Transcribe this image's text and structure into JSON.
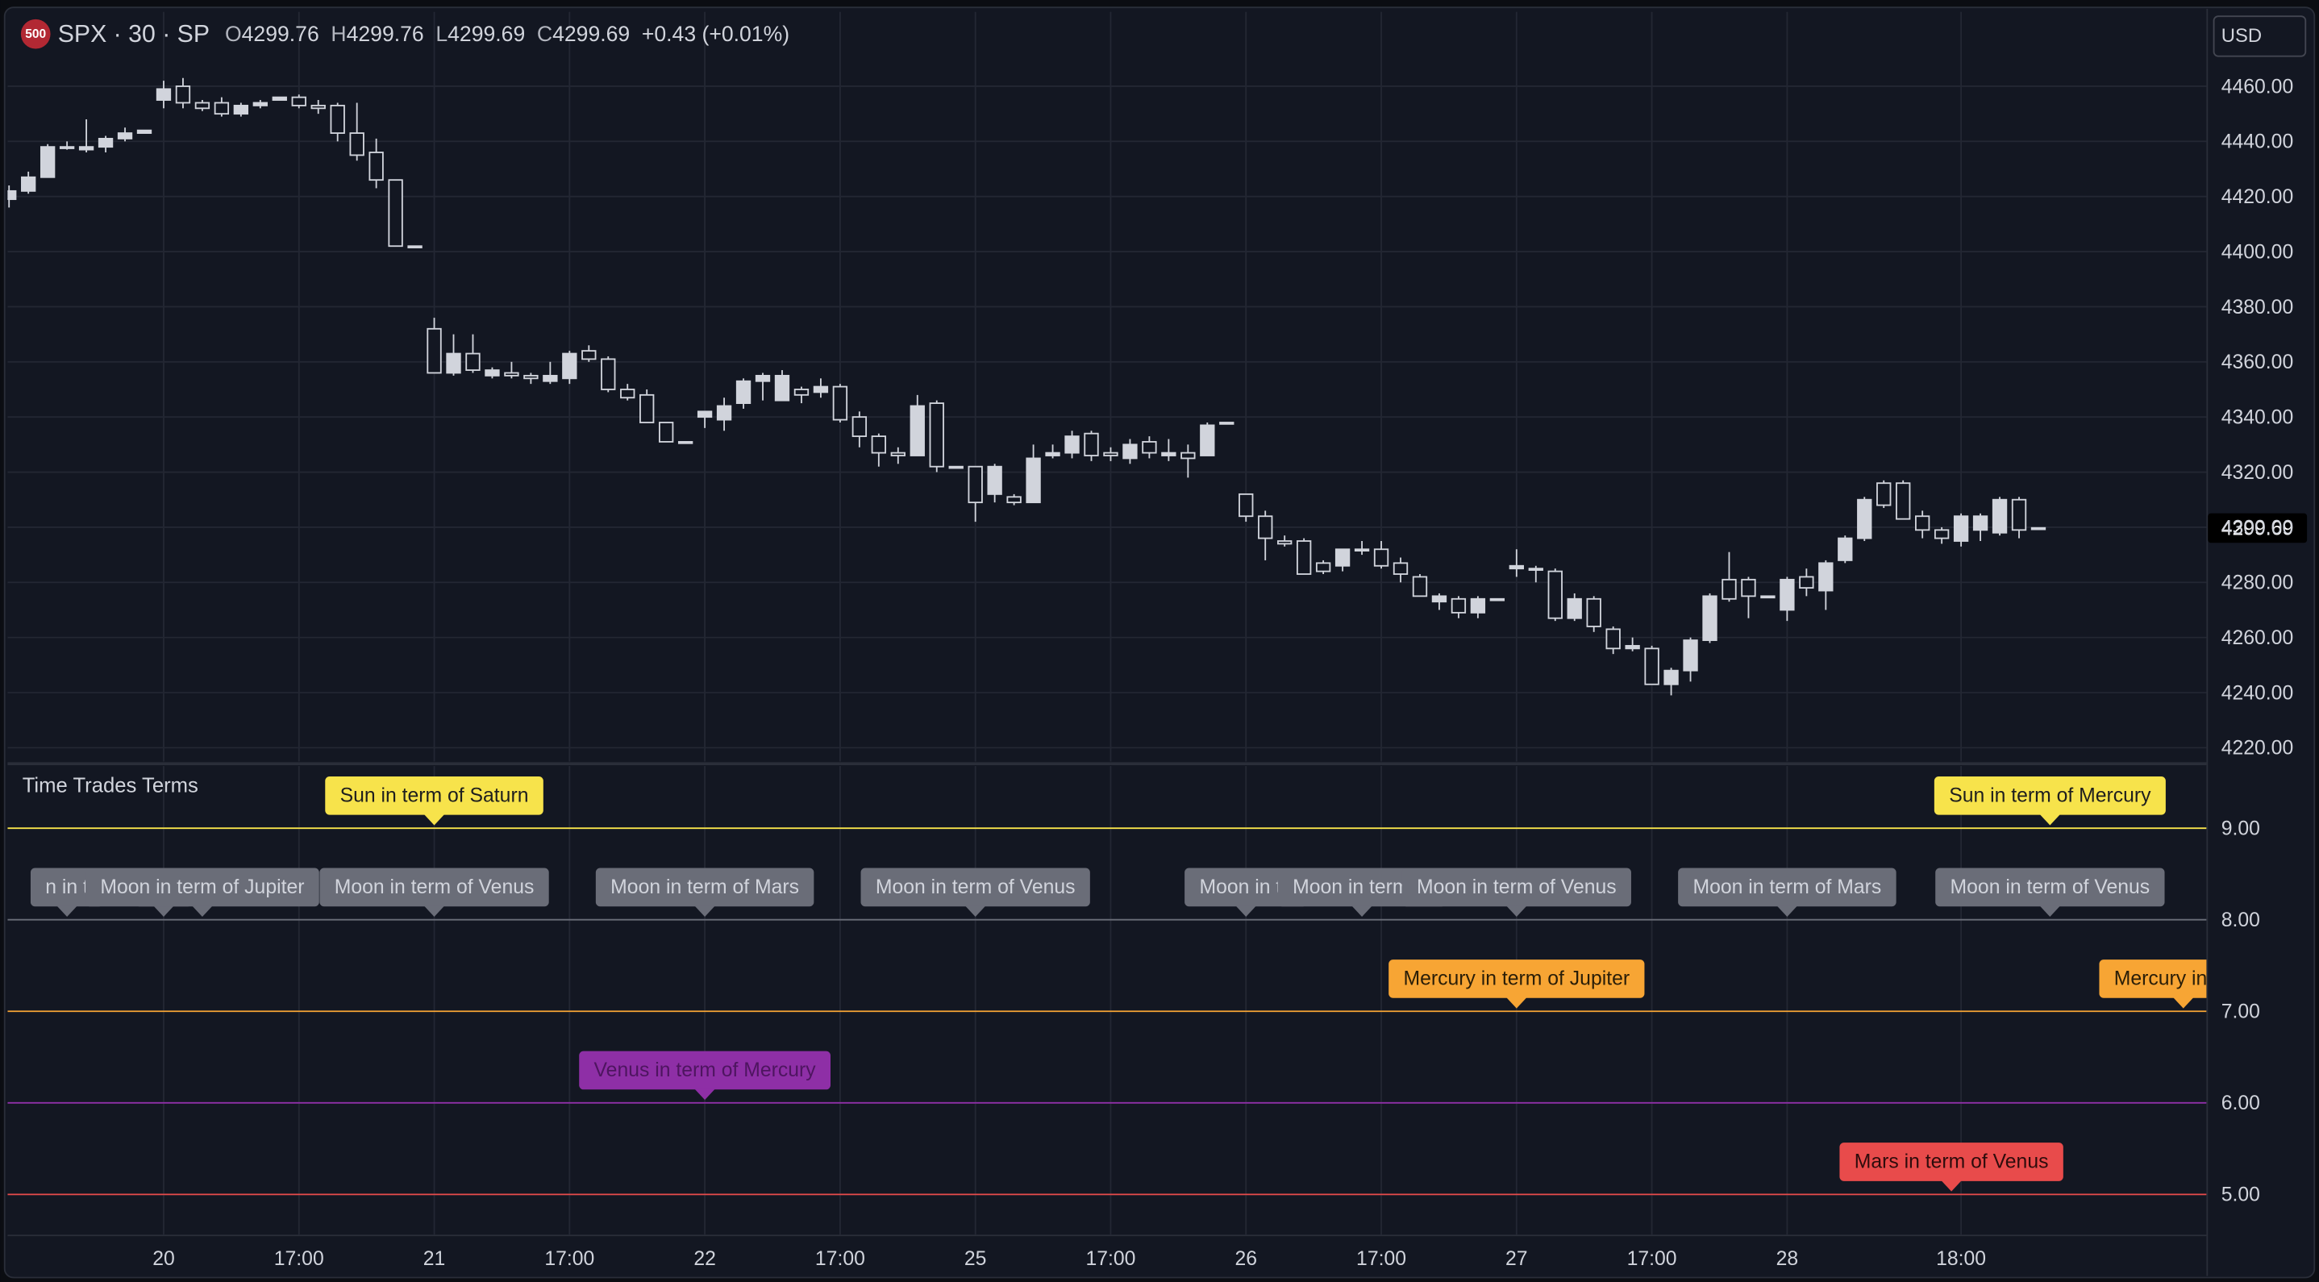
{
  "chart_data": [
    {
      "type": "candlestick",
      "logo": "500",
      "symbol": "SPX · 30 · SP",
      "legend": [
        {
          "label": "O",
          "value": 4299.76
        },
        {
          "label": "H",
          "value": 4299.76
        },
        {
          "label": "L",
          "value": 4299.69
        },
        {
          "label": "C",
          "value": 4299.69
        }
      ],
      "change": "+0.43 (+0.01%)",
      "currency": "USD",
      "up_color": "#d1d4dc",
      "down_color": "#d1d4dc",
      "categories": [
        null,
        null,
        null,
        null,
        null,
        null,
        null,
        null,
        "20",
        null,
        null,
        null,
        null,
        null,
        null,
        "17:00",
        null,
        null,
        null,
        null,
        null,
        null,
        "21",
        null,
        null,
        null,
        null,
        null,
        null,
        "17:00",
        null,
        null,
        null,
        null,
        null,
        null,
        "22",
        null,
        null,
        null,
        null,
        null,
        null,
        "17:00",
        null,
        null,
        null,
        null,
        null,
        null,
        "25",
        null,
        null,
        null,
        null,
        null,
        null,
        "17:00",
        null,
        null,
        null,
        null,
        null,
        null,
        "26",
        null,
        null,
        null,
        null,
        null,
        null,
        "17:00",
        null,
        null,
        null,
        null,
        null,
        null,
        "27",
        null,
        null,
        null,
        null,
        null,
        null,
        "17:00",
        null,
        null,
        null,
        null,
        null,
        null,
        "28",
        null,
        null,
        null,
        null,
        null,
        null,
        null,
        null,
        "18:00",
        null,
        null,
        null,
        null
      ],
      "open": [
        4419,
        4422,
        4427,
        4438,
        4437,
        4438,
        4441,
        4443,
        4455,
        4460,
        4454,
        4454,
        4450,
        4453,
        4455,
        4456,
        4453,
        4453,
        4443,
        4436,
        4426,
        4402,
        4372,
        4356,
        4363,
        4355,
        4356,
        4355,
        4353,
        4354,
        4364,
        4361,
        4350,
        4348,
        4338,
        4331,
        4340,
        4339,
        4345,
        4353,
        4346,
        4350,
        4349,
        4351,
        4340,
        4333,
        4327,
        4326,
        4345,
        4322,
        4322,
        4312,
        4311,
        4309,
        4326,
        4327,
        4334,
        4327,
        4325,
        4331,
        4326,
        4327,
        4326,
        4338,
        4312,
        4304,
        4295,
        4295,
        4287,
        4286,
        4292,
        4292,
        4287,
        4282,
        4273,
        4274,
        4269,
        4274,
        4285,
        4285,
        4284,
        4267,
        4274,
        4263,
        4256,
        4256,
        4243,
        4248,
        4259,
        4281,
        4281,
        4275,
        4270,
        4282,
        4277,
        4288,
        4296,
        4316,
        4316,
        4304,
        4299,
        4295,
        4299,
        4298,
        4310,
        4299.76
      ],
      "high": [
        4424,
        4429,
        4439,
        4440,
        4448,
        4442,
        4445,
        4444,
        4462,
        4463,
        4455,
        4456,
        4454,
        4455,
        4456,
        4457,
        4455,
        4454,
        4454,
        4441,
        4426,
        4402,
        4376,
        4370,
        4370,
        4358,
        4360,
        4356,
        4360,
        4364,
        4366,
        4362,
        4352,
        4350,
        4338,
        4331,
        4342,
        4347,
        4354,
        4356,
        4357,
        4351,
        4354,
        4352,
        4342,
        4334,
        4329,
        4348,
        4346,
        4322,
        4322,
        4323,
        4312,
        4330,
        4330,
        4335,
        4335,
        4329,
        4332,
        4333,
        4332,
        4330,
        4338,
        4338,
        4312,
        4306,
        4297,
        4296,
        4288,
        4292,
        4295,
        4295,
        4289,
        4283,
        4276,
        4275,
        4275,
        4274,
        4292,
        4286,
        4285,
        4276,
        4275,
        4264,
        4260,
        4257,
        4249,
        4260,
        4276,
        4291,
        4282,
        4275,
        4282,
        4285,
        4288,
        4297,
        4311,
        4317,
        4317,
        4306,
        4300,
        4305,
        4305,
        4311,
        4311,
        4299.76
      ],
      "low": [
        4416,
        4421,
        4427,
        4437,
        4436,
        4436,
        4440,
        4443,
        4452,
        4452,
        4451,
        4449,
        4449,
        4452,
        4455,
        4452,
        4450,
        4440,
        4433,
        4423,
        4402,
        4402,
        4356,
        4355,
        4356,
        4354,
        4354,
        4352,
        4352,
        4352,
        4360,
        4349,
        4346,
        4338,
        4331,
        4331,
        4336,
        4335,
        4343,
        4346,
        4346,
        4345,
        4347,
        4338,
        4329,
        4322,
        4323,
        4326,
        4320,
        4322,
        4302,
        4309,
        4308,
        4309,
        4325,
        4325,
        4324,
        4324,
        4323,
        4325,
        4324,
        4318,
        4326,
        4338,
        4302,
        4288,
        4293,
        4283,
        4283,
        4284,
        4290,
        4285,
        4280,
        4275,
        4270,
        4267,
        4267,
        4274,
        4282,
        4280,
        4266,
        4266,
        4262,
        4254,
        4255,
        4243,
        4239,
        4244,
        4258,
        4273,
        4267,
        4275,
        4266,
        4275,
        4270,
        4287,
        4295,
        4307,
        4303,
        4296,
        4294,
        4293,
        4295,
        4297,
        4296,
        4299.69
      ],
      "close": [
        4422,
        4427,
        4438,
        4438,
        4438,
        4441,
        4443,
        4444,
        4459,
        4454,
        4452,
        4450,
        4453,
        4454,
        4456,
        4453,
        4452,
        4443,
        4435,
        4426,
        4402,
        4402,
        4356,
        4363,
        4357,
        4357,
        4355,
        4354,
        4355,
        4363,
        4361,
        4350,
        4347,
        4338,
        4331,
        4331,
        4342,
        4344,
        4353,
        4355,
        4355,
        4348,
        4351,
        4339,
        4333,
        4327,
        4326,
        4344,
        4322,
        4322,
        4309,
        4322,
        4309,
        4325,
        4327,
        4333,
        4326,
        4326,
        4330,
        4327,
        4327,
        4325,
        4337,
        4338,
        4304,
        4296,
        4294,
        4283,
        4284,
        4292,
        4292,
        4286,
        4283,
        4275,
        4275,
        4269,
        4274,
        4274,
        4286,
        4285,
        4267,
        4274,
        4264,
        4256,
        4257,
        4243,
        4248,
        4259,
        4275,
        4274,
        4275,
        4275,
        4281,
        4278,
        4287,
        4296,
        4310,
        4308,
        4303,
        4299,
        4296,
        4304,
        4304,
        4310,
        4299,
        4299.69
      ],
      "ylim": [
        4215,
        4487
      ],
      "yticks": [
        {
          "value": 4220,
          "label": "4220.00"
        },
        {
          "value": 4240,
          "label": "4240.00"
        },
        {
          "value": 4260,
          "label": "4260.00"
        },
        {
          "value": 4280,
          "label": "4280.00"
        },
        {
          "value": 4300,
          "label": "4300.00"
        },
        {
          "value": 4320,
          "label": "4320.00"
        },
        {
          "value": 4340,
          "label": "4340.00"
        },
        {
          "value": 4360,
          "label": "4360.00"
        },
        {
          "value": 4380,
          "label": "4380.00"
        },
        {
          "value": 4400,
          "label": "4400.00"
        },
        {
          "value": 4420,
          "label": "4420.00"
        },
        {
          "value": 4440,
          "label": "4440.00"
        },
        {
          "value": 4460,
          "label": "4460.00"
        }
      ],
      "grid": true
    },
    {
      "type": "event-lines",
      "title": "Time Trades Terms",
      "ylim": [
        4.56,
        9.68
      ],
      "yticks": [
        {
          "value": 5,
          "label": "5.00"
        },
        {
          "value": 6,
          "label": "6.00"
        },
        {
          "value": 7,
          "label": "7.00"
        },
        {
          "value": 8,
          "label": "8.00"
        },
        {
          "value": 9,
          "label": "9.00"
        }
      ],
      "lines": [
        {
          "value": 9,
          "color": "#f7e34b",
          "text_color": "#1e1e1e"
        },
        {
          "value": 8,
          "color": "#6a6d78",
          "text_color": "#d1d4dc"
        },
        {
          "value": 7,
          "color": "#f7a534",
          "text_color": "#2a1e08"
        },
        {
          "value": 6,
          "color": "#8e2fa6",
          "text_color": "#4e1560"
        },
        {
          "value": 5,
          "color": "#e84b4b",
          "text_color": "#2e0c0c"
        }
      ],
      "events": [
        {
          "label": "Sun in term of Saturn",
          "x": 22,
          "line": 0
        },
        {
          "label": "Sun in term of Mercury",
          "x": 105.6,
          "line": 0
        },
        {
          "label": "n in t",
          "x": 3,
          "line": 1
        },
        {
          "label": "Mo",
          "x": 8,
          "line": 1
        },
        {
          "label": "Moon in term of Jupiter",
          "x": 10,
          "line": 1
        },
        {
          "label": "Moon in term of Venus",
          "x": 22,
          "line": 1
        },
        {
          "label": "Moon in term of Mars",
          "x": 36,
          "line": 1
        },
        {
          "label": "Moon in term of Venus",
          "x": 50,
          "line": 1
        },
        {
          "label": "Moon in te",
          "x": 64,
          "line": 1
        },
        {
          "label": "Moon in term of",
          "x": 70,
          "line": 1
        },
        {
          "label": "Moon in term of Venus",
          "x": 78,
          "line": 1
        },
        {
          "label": "Moon in term of Mars",
          "x": 92,
          "line": 1
        },
        {
          "label": "Moon in term of Venus",
          "x": 105.6,
          "line": 1
        },
        {
          "label": "Mercury in term of Jupiter",
          "x": 78,
          "line": 2
        },
        {
          "label": "Mercury in term",
          "x": 112.5,
          "line": 2
        },
        {
          "label": "Venus in term of Mercury",
          "x": 36,
          "line": 3
        },
        {
          "label": "Mars in term of Venus",
          "x": 100.5,
          "line": 4
        }
      ],
      "grid": true
    }
  ]
}
